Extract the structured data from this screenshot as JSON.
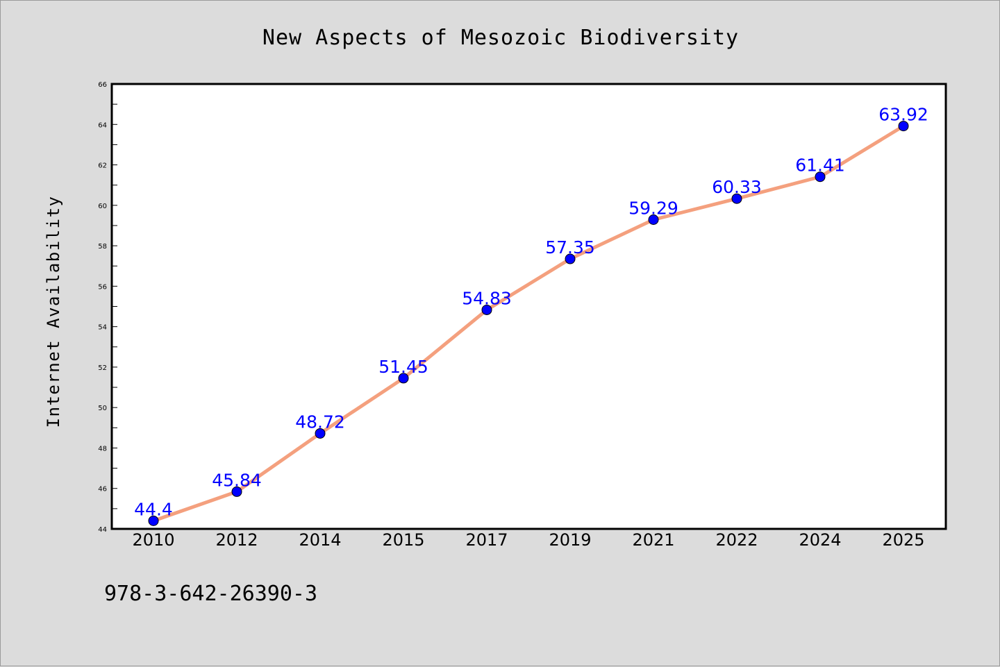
{
  "chart_data": {
    "type": "line",
    "title": "New Aspects of Mesozoic Biodiversity",
    "xlabel": "",
    "ylabel": "Internet Availability",
    "categories": [
      "2010",
      "2012",
      "2014",
      "2015",
      "2017",
      "2019",
      "2021",
      "2022",
      "2024",
      "2025"
    ],
    "series": [
      {
        "values": [
          44.4,
          45.84,
          48.72,
          51.45,
          54.83,
          57.35,
          59.29,
          60.33,
          61.41,
          63.92
        ],
        "labels": [
          "44.4",
          "45.84",
          "48.72",
          "51.45",
          "54.83",
          "57.35",
          "59.29",
          "60.33",
          "61.41",
          "63.92"
        ]
      }
    ],
    "ylim": [
      44,
      66
    ],
    "yticks": [
      "44",
      "46",
      "48",
      "50",
      "52",
      "54",
      "56",
      "58",
      "60",
      "62",
      "64",
      "66"
    ],
    "grid": false,
    "line_color": "#f4a07e",
    "marker_color": "#0000ff",
    "label_color": "#0000ff"
  },
  "footer": {
    "isbn": "978-3-642-26390-3"
  },
  "colors": {
    "background": "#dcdcdc",
    "plot_background": "#ffffff"
  }
}
